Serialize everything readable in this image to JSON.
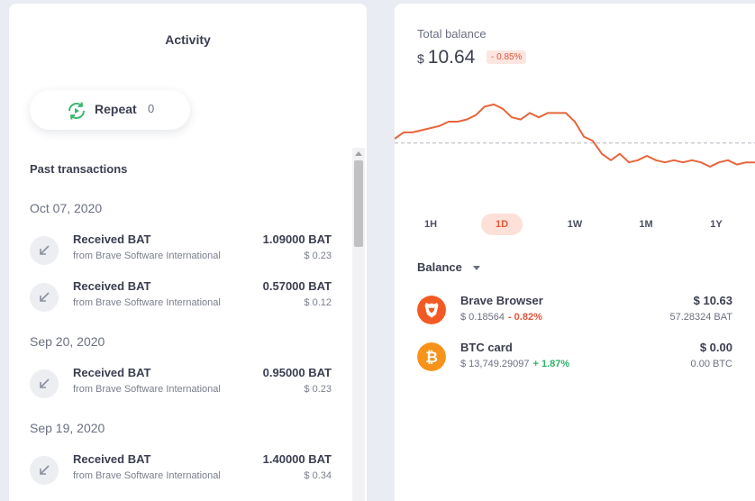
{
  "activity": {
    "title": "Activity",
    "repeat_label": "Repeat",
    "repeat_count": "0",
    "past_title": "Past transactions",
    "groups": [
      {
        "date": "Oct 07, 2020",
        "items": [
          {
            "title": "Received BAT",
            "from": "from Brave Software International",
            "amount": "1.09000 BAT",
            "fiat": "$ 0.23"
          },
          {
            "title": "Received BAT",
            "from": "from Brave Software International",
            "amount": "0.57000 BAT",
            "fiat": "$ 0.12"
          }
        ]
      },
      {
        "date": "Sep 20, 2020",
        "items": [
          {
            "title": "Received BAT",
            "from": "from Brave Software International",
            "amount": "0.95000 BAT",
            "fiat": "$ 0.23"
          }
        ]
      },
      {
        "date": "Sep 19, 2020",
        "items": [
          {
            "title": "Received BAT",
            "from": "from Brave Software International",
            "amount": "1.40000 BAT",
            "fiat": "$ 0.34"
          }
        ]
      }
    ]
  },
  "balance": {
    "total_label": "Total balance",
    "currency_symbol": "$",
    "total_value": "10.64",
    "change": "- 0.85%",
    "ranges": [
      "1H",
      "1D",
      "1W",
      "1M",
      "1Y"
    ],
    "active_range": "1D",
    "section_label": "Balance",
    "accounts": [
      {
        "name": "Brave Browser",
        "price": "$ 0.18564",
        "change": "- 0.82%",
        "change_dir": "neg",
        "fiat": "$ 10.63",
        "crypto": "57.28324 BAT",
        "icon": "brave-lion-icon"
      },
      {
        "name": "BTC card",
        "price": "$ 13,749.29097",
        "change": "+ 1.87%",
        "change_dir": "pos",
        "fiat": "$ 0.00",
        "crypto": "0.00 BTC",
        "icon": "bitcoin-icon"
      }
    ]
  },
  "chart_data": {
    "type": "line",
    "title": "",
    "series": [
      {
        "name": "Total balance",
        "values": [
          10.71,
          10.74,
          10.74,
          10.75,
          10.76,
          10.77,
          10.79,
          10.79,
          10.8,
          10.82,
          10.86,
          10.87,
          10.85,
          10.81,
          10.8,
          10.83,
          10.81,
          10.83,
          10.83,
          10.83,
          10.79,
          10.72,
          10.7,
          10.64,
          10.61,
          10.64,
          10.6,
          10.61,
          10.63,
          10.61,
          10.6,
          10.61,
          10.6,
          10.61,
          10.6,
          10.58,
          10.6,
          10.61,
          10.59,
          10.6,
          10.6
        ]
      }
    ],
    "reference_line": 10.69,
    "ylim": [
      10.5,
      10.92
    ],
    "colors": {
      "line": "#e8643a",
      "reference": "#b0b4bc"
    }
  },
  "colors": {
    "accent": "#e2553a",
    "positive": "#2fb36b",
    "repeat_green": "#36b86a",
    "brave_orange": "#f25a23",
    "bitcoin_orange": "#f7931a"
  }
}
